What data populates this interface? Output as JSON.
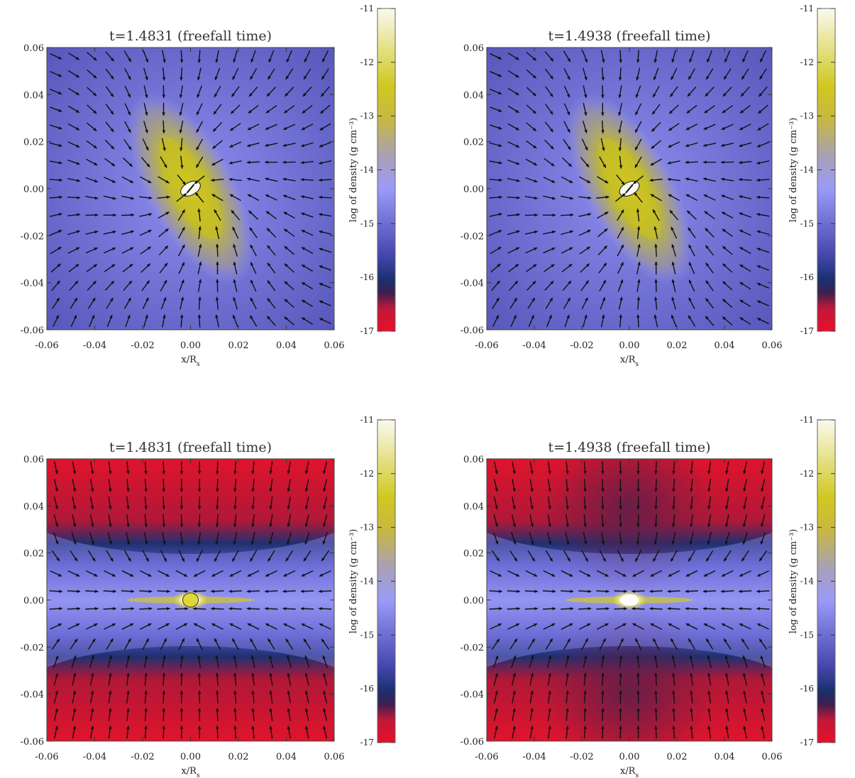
{
  "chart_data": [
    {
      "type": "heatmap",
      "view": "face-on",
      "title": "t=1.4831 (freefall time)",
      "xlabel": "x/R_s",
      "ylabel": "",
      "xlim": [
        -0.06,
        0.06
      ],
      "ylim": [
        -0.06,
        0.06
      ],
      "x_ticks": [
        "-0.06",
        "-0.04",
        "-0.02",
        "0.00",
        "0.02",
        "0.04",
        "0.06"
      ],
      "y_ticks": [
        "0.06",
        "0.04",
        "0.02",
        "0.00",
        "-0.02",
        "-0.04",
        "-0.06"
      ],
      "colorbar": {
        "label": "log of density (g cm⁻³)",
        "range": [
          -17,
          -11
        ],
        "ticks": [
          "-11",
          "-12",
          "-13",
          "-14",
          "-15",
          "-16",
          "-17"
        ]
      },
      "grid": false,
      "features": "inclined yellow high-density filament through origin, white core at center, velocity vectors converging inward"
    },
    {
      "type": "heatmap",
      "view": "face-on",
      "title": "t=1.4938 (freefall time)",
      "xlabel": "x/R_s",
      "ylabel": "",
      "xlim": [
        -0.06,
        0.06
      ],
      "ylim": [
        -0.06,
        0.06
      ],
      "x_ticks": [
        "-0.06",
        "-0.04",
        "-0.02",
        "0.00",
        "0.02",
        "0.04",
        "0.06"
      ],
      "y_ticks": [
        "0.06",
        "0.04",
        "0.02",
        "0.00",
        "-0.02",
        "-0.04",
        "-0.06"
      ],
      "colorbar": {
        "label": "log of density (g cm⁻³)",
        "range": [
          -17,
          -11
        ],
        "ticks": [
          "-11",
          "-12",
          "-13",
          "-14",
          "-15",
          "-16",
          "-17"
        ]
      },
      "grid": false,
      "features": "inclined yellow high-density filament through origin, white core at center, velocity vectors converging inward"
    },
    {
      "type": "heatmap",
      "view": "edge-on",
      "title": "t=1.4831 (freefall time)",
      "xlabel": "x/R_s",
      "ylabel": "",
      "xlim": [
        -0.06,
        0.06
      ],
      "ylim": [
        -0.06,
        0.06
      ],
      "x_ticks": [
        "-0.06",
        "-0.04",
        "-0.02",
        "0.00",
        "0.02",
        "0.04",
        "0.06"
      ],
      "y_ticks": [
        "0.06",
        "0.04",
        "0.02",
        "0.00",
        "-0.02",
        "-0.04",
        "-0.06"
      ],
      "colorbar": {
        "label": "log of density (g cm⁻³)",
        "range": [
          -17,
          -11
        ],
        "ticks": [
          "-11",
          "-12",
          "-13",
          "-14",
          "-15",
          "-16",
          "-17"
        ]
      },
      "grid": false,
      "features": "flattened disk along y=0 with red low-density lobes above and below, yellow-white core at origin"
    },
    {
      "type": "heatmap",
      "view": "edge-on",
      "title": "t=1.4938 (freefall time)",
      "xlabel": "x/R_s",
      "ylabel": "",
      "xlim": [
        -0.06,
        0.06
      ],
      "ylim": [
        -0.06,
        0.06
      ],
      "x_ticks": [
        "-0.06",
        "-0.04",
        "-0.02",
        "0.00",
        "0.02",
        "0.04",
        "0.06"
      ],
      "y_ticks": [
        "0.06",
        "0.04",
        "0.02",
        "0.00",
        "-0.02",
        "-0.04",
        "-0.06"
      ],
      "colorbar": {
        "label": "log of density (g cm⁻³)",
        "range": [
          -17,
          -11
        ],
        "ticks": [
          "-11",
          "-12",
          "-13",
          "-14",
          "-15",
          "-16",
          "-17"
        ]
      },
      "grid": false,
      "features": "flattened disk along y=0 with red low-density lobes above and below, bright white core at origin"
    }
  ],
  "colormap": [
    "#e8102a",
    "#5a2a5a",
    "#223a7a",
    "#5050b8",
    "#9a9af8",
    "#b8a888",
    "#c0b818",
    "#f6f6dc"
  ]
}
